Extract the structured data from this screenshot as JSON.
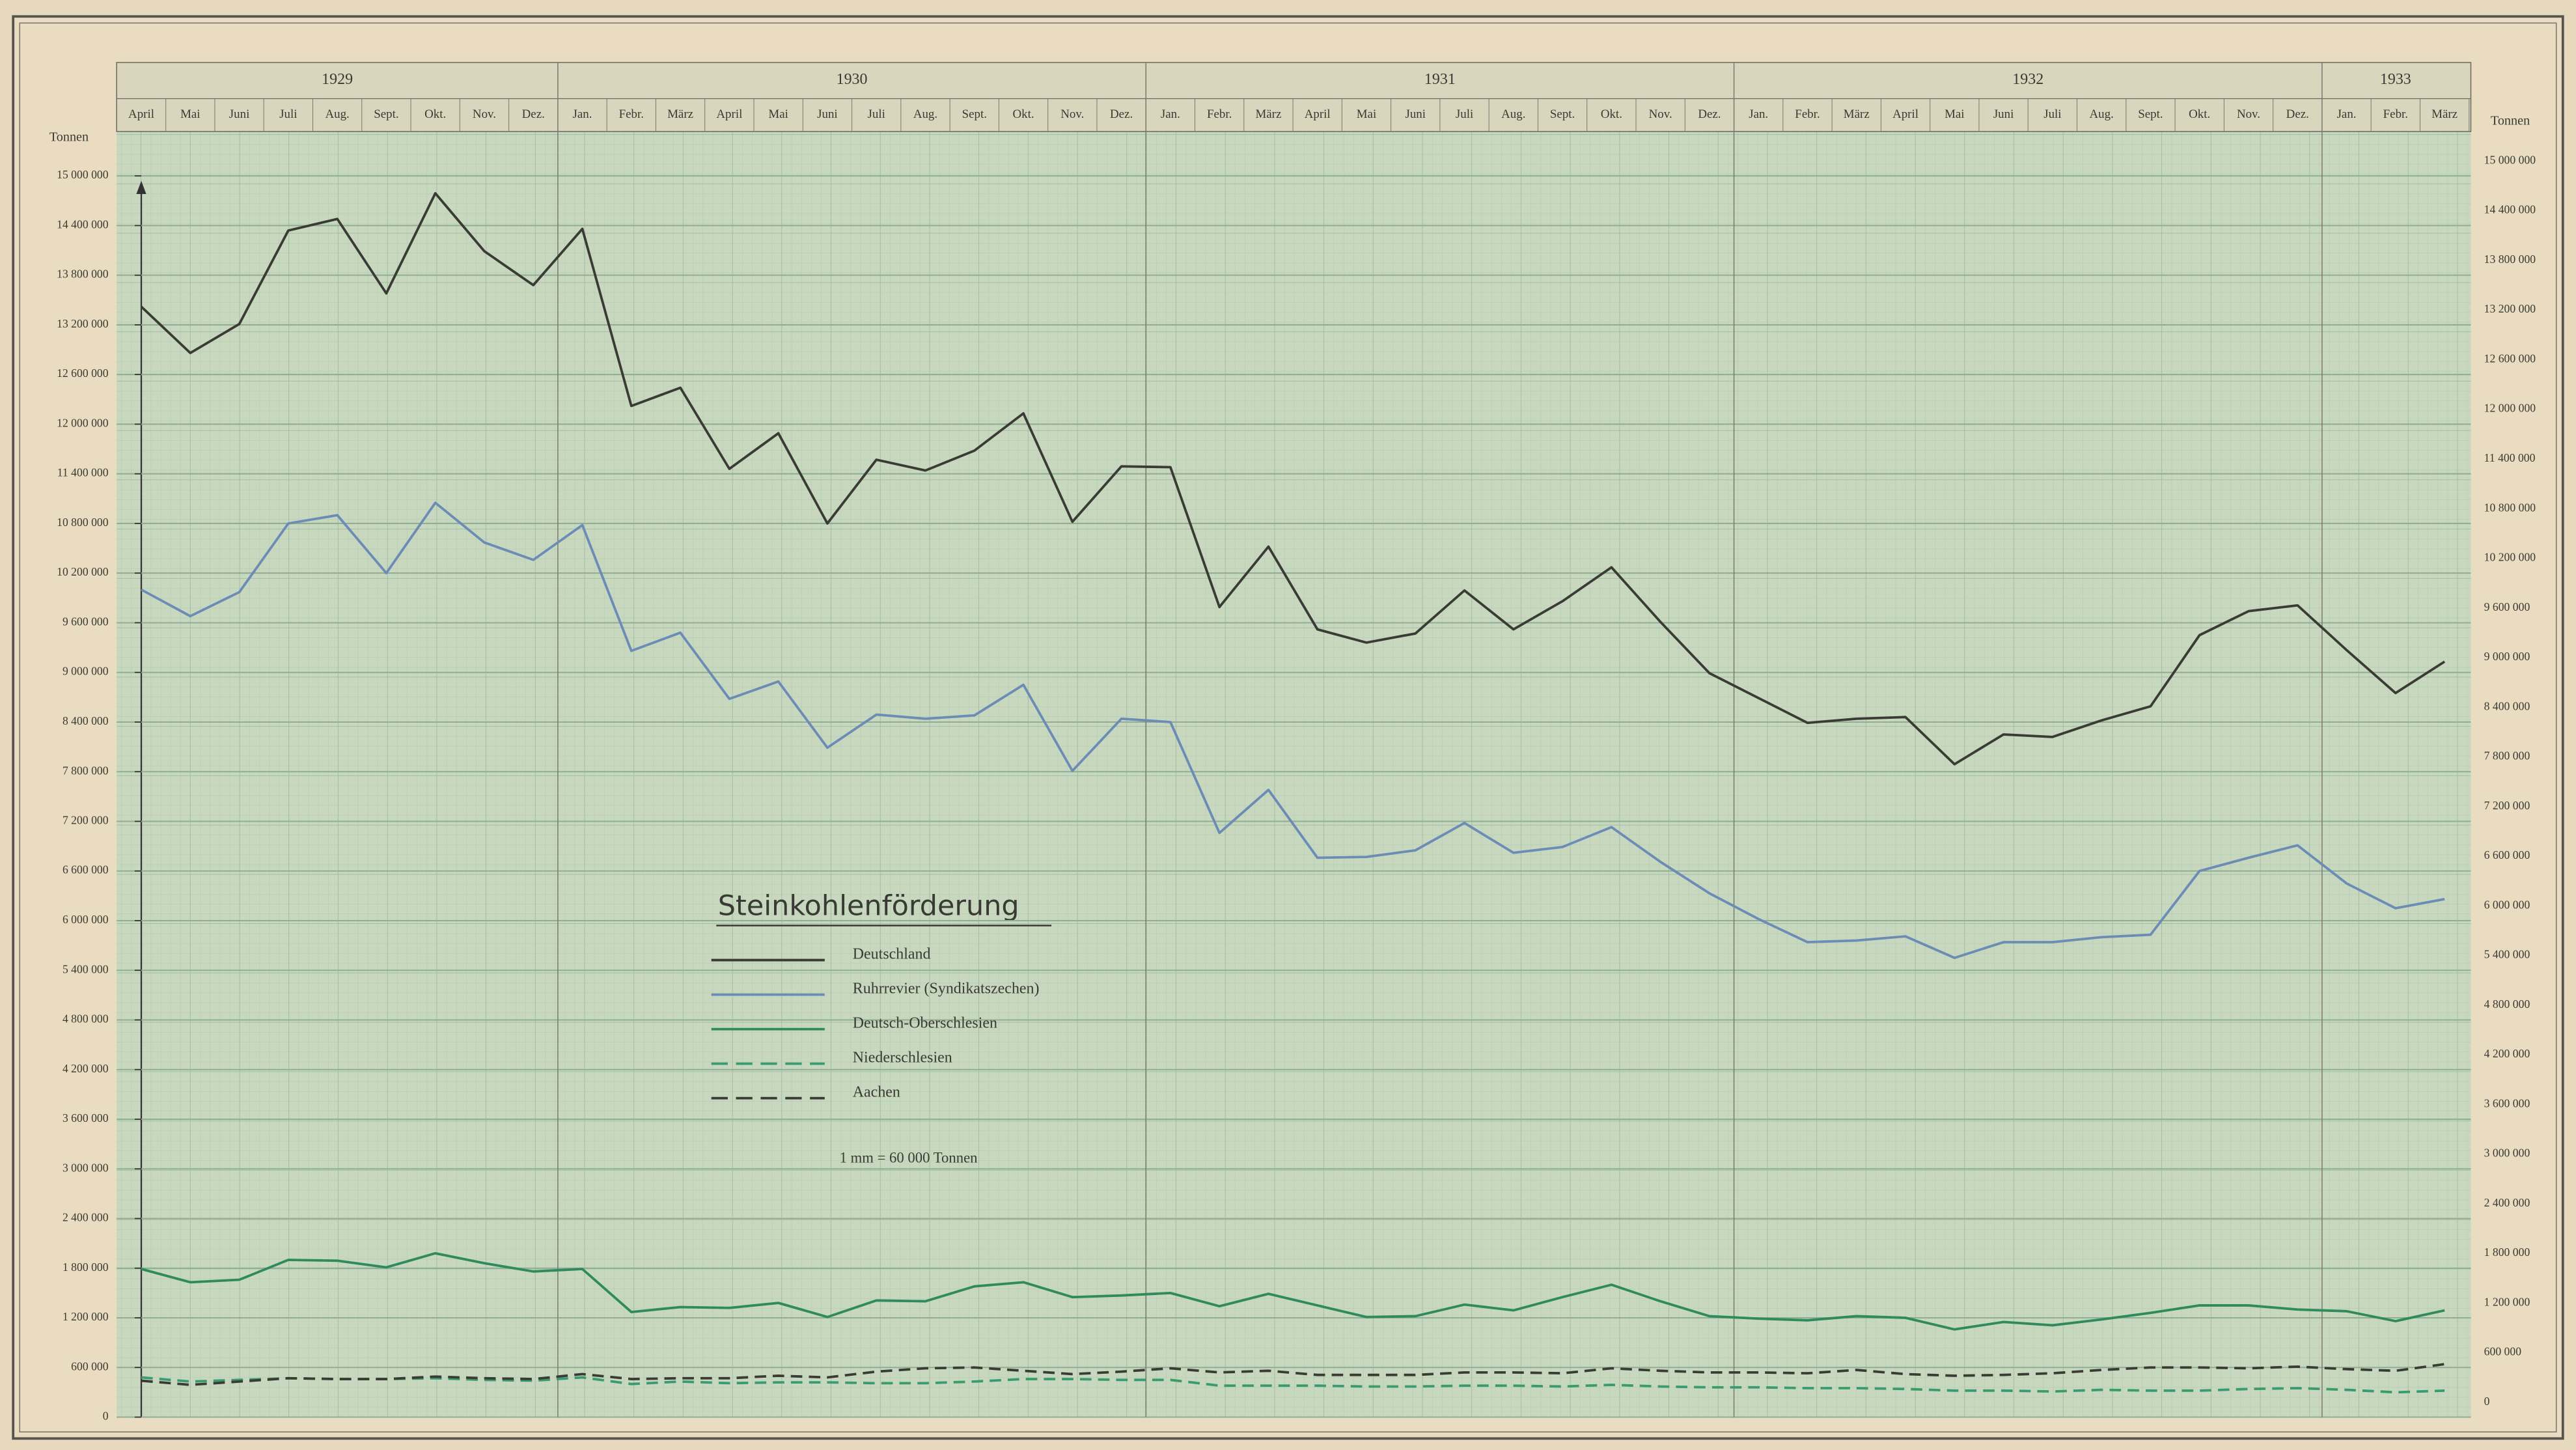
{
  "chart_data": {
    "type": "line",
    "title": "Steinkohlenförderung",
    "note": "1 mm = 60 000 Tonnen",
    "y_label": "Tonnen",
    "year_groups": [
      {
        "label": "1929",
        "months": [
          "April",
          "Mai",
          "Juni",
          "Juli",
          "Aug.",
          "Sept.",
          "Okt.",
          "Nov.",
          "Dez."
        ]
      },
      {
        "label": "1930",
        "months": [
          "Jan.",
          "Febr.",
          "März",
          "April",
          "Mai",
          "Juni",
          "Juli",
          "Aug.",
          "Sept.",
          "Okt.",
          "Nov.",
          "Dez."
        ]
      },
      {
        "label": "1931",
        "months": [
          "Jan.",
          "Febr.",
          "März",
          "April",
          "Mai",
          "Juni",
          "Juli",
          "Aug.",
          "Sept.",
          "Okt.",
          "Nov.",
          "Dez."
        ]
      },
      {
        "label": "1932",
        "months": [
          "Jan.",
          "Febr.",
          "März",
          "April",
          "Mai",
          "Juni",
          "Juli",
          "Aug.",
          "Sept.",
          "Okt.",
          "Nov.",
          "Dez."
        ]
      },
      {
        "label": "1933",
        "months": [
          "Jan.",
          "Febr.",
          "März"
        ]
      }
    ],
    "ylim": [
      0,
      15000000
    ],
    "yticks": [
      0,
      {
        "value": 600000,
        "label": "600 000"
      },
      {
        "value": 1200000,
        "label": "1 200 000"
      },
      {
        "value": 1800000,
        "label": "1 800 000"
      },
      {
        "value": 2400000,
        "label": "2 400 000"
      },
      {
        "value": 3000000,
        "label": "3 000 000"
      },
      {
        "value": 3600000,
        "label": "3 600 000"
      },
      {
        "value": 4200000,
        "label": "4 200 000"
      },
      {
        "value": 4800000,
        "label": "4 800 000"
      },
      {
        "value": 5400000,
        "label": "5 400 000"
      },
      {
        "value": 6000000,
        "label": "6 000 000"
      },
      {
        "value": 6600000,
        "label": "6 600 000"
      },
      {
        "value": 7200000,
        "label": "7 200 000"
      },
      {
        "value": 7800000,
        "label": "7 800 000"
      },
      {
        "value": 8400000,
        "label": "8 400 000"
      },
      {
        "value": 9000000,
        "label": "9 000 000"
      },
      {
        "value": 9600000,
        "label": "9 600 000"
      },
      {
        "value": 10200000,
        "label": "10 200 000"
      },
      {
        "value": 10800000,
        "label": "10 800 000"
      },
      {
        "value": 11400000,
        "label": "11 400 000"
      },
      {
        "value": 12000000,
        "label": "12 000 000"
      },
      {
        "value": 12600000,
        "label": "12 600 000"
      },
      {
        "value": 13200000,
        "label": "13 200 000"
      },
      {
        "value": 13800000,
        "label": "13 800 000"
      },
      {
        "value": 14400000,
        "label": "14 400 000"
      },
      {
        "value": 15000000,
        "label": "15 000 000"
      }
    ],
    "grid": true,
    "series": [
      {
        "name": "Deutschland",
        "color": "#3b3b36",
        "dashed": false,
        "values": [
          13420000,
          12860000,
          13210000,
          14340000,
          14480000,
          13580000,
          14790000,
          14090000,
          13680000,
          14360000,
          12220000,
          12440000,
          11460000,
          11890000,
          10800000,
          11570000,
          11440000,
          11680000,
          12130000,
          10820000,
          11490000,
          11480000,
          9790000,
          10520000,
          9520000,
          9360000,
          9470000,
          9990000,
          9520000,
          9860000,
          10270000,
          9610000,
          8990000,
          8690000,
          8390000,
          8440000,
          8460000,
          7890000,
          8250000,
          8220000,
          8420000,
          8590000,
          9450000,
          9740000,
          9810000,
          9270000,
          8750000,
          9130000
        ]
      },
      {
        "name": "Ruhrrevier (Syndikatszechen)",
        "color": "#6c8cb6",
        "dashed": false,
        "values": [
          10000000,
          9680000,
          9970000,
          10800000,
          10900000,
          10200000,
          11050000,
          10570000,
          10360000,
          10780000,
          9260000,
          9480000,
          8680000,
          8890000,
          8090000,
          8490000,
          8440000,
          8480000,
          8850000,
          7810000,
          8440000,
          8400000,
          7060000,
          7580000,
          6760000,
          6770000,
          6850000,
          7180000,
          6820000,
          6890000,
          7130000,
          6710000,
          6330000,
          6020000,
          5740000,
          5760000,
          5810000,
          5550000,
          5740000,
          5740000,
          5800000,
          5830000,
          6600000,
          6760000,
          6910000,
          6450000,
          6150000,
          6260000
        ]
      },
      {
        "name": "Deutsch-Oberschlesien",
        "color": "#2f8a5e",
        "dashed": false,
        "values": [
          1790000,
          1630000,
          1660000,
          1900000,
          1890000,
          1810000,
          1980000,
          1860000,
          1760000,
          1790000,
          1270000,
          1330000,
          1320000,
          1380000,
          1210000,
          1410000,
          1400000,
          1580000,
          1630000,
          1450000,
          1470000,
          1500000,
          1340000,
          1490000,
          1350000,
          1210000,
          1220000,
          1360000,
          1290000,
          1450000,
          1600000,
          1400000,
          1220000,
          1190000,
          1170000,
          1220000,
          1200000,
          1060000,
          1150000,
          1110000,
          1180000,
          1260000,
          1350000,
          1350000,
          1300000,
          1280000,
          1160000,
          1290000
        ]
      },
      {
        "name": "Niederschlesien",
        "color": "#3a9a70",
        "dashed": true,
        "values": [
          480000,
          430000,
          450000,
          470000,
          460000,
          460000,
          470000,
          450000,
          440000,
          480000,
          400000,
          430000,
          410000,
          420000,
          420000,
          410000,
          410000,
          430000,
          460000,
          460000,
          450000,
          450000,
          380000,
          380000,
          380000,
          370000,
          370000,
          380000,
          380000,
          370000,
          390000,
          370000,
          360000,
          360000,
          350000,
          350000,
          340000,
          320000,
          320000,
          310000,
          330000,
          320000,
          320000,
          340000,
          350000,
          330000,
          300000,
          320000
        ]
      },
      {
        "name": "Aachen",
        "color": "#3b3b36",
        "dashed": true,
        "values": [
          440000,
          390000,
          430000,
          470000,
          460000,
          460000,
          490000,
          470000,
          460000,
          520000,
          460000,
          470000,
          470000,
          500000,
          480000,
          550000,
          590000,
          600000,
          560000,
          520000,
          550000,
          590000,
          540000,
          560000,
          510000,
          510000,
          510000,
          540000,
          540000,
          530000,
          590000,
          560000,
          540000,
          540000,
          530000,
          570000,
          520000,
          500000,
          510000,
          530000,
          570000,
          600000,
          600000,
          590000,
          610000,
          580000,
          560000,
          640000
        ]
      }
    ]
  }
}
